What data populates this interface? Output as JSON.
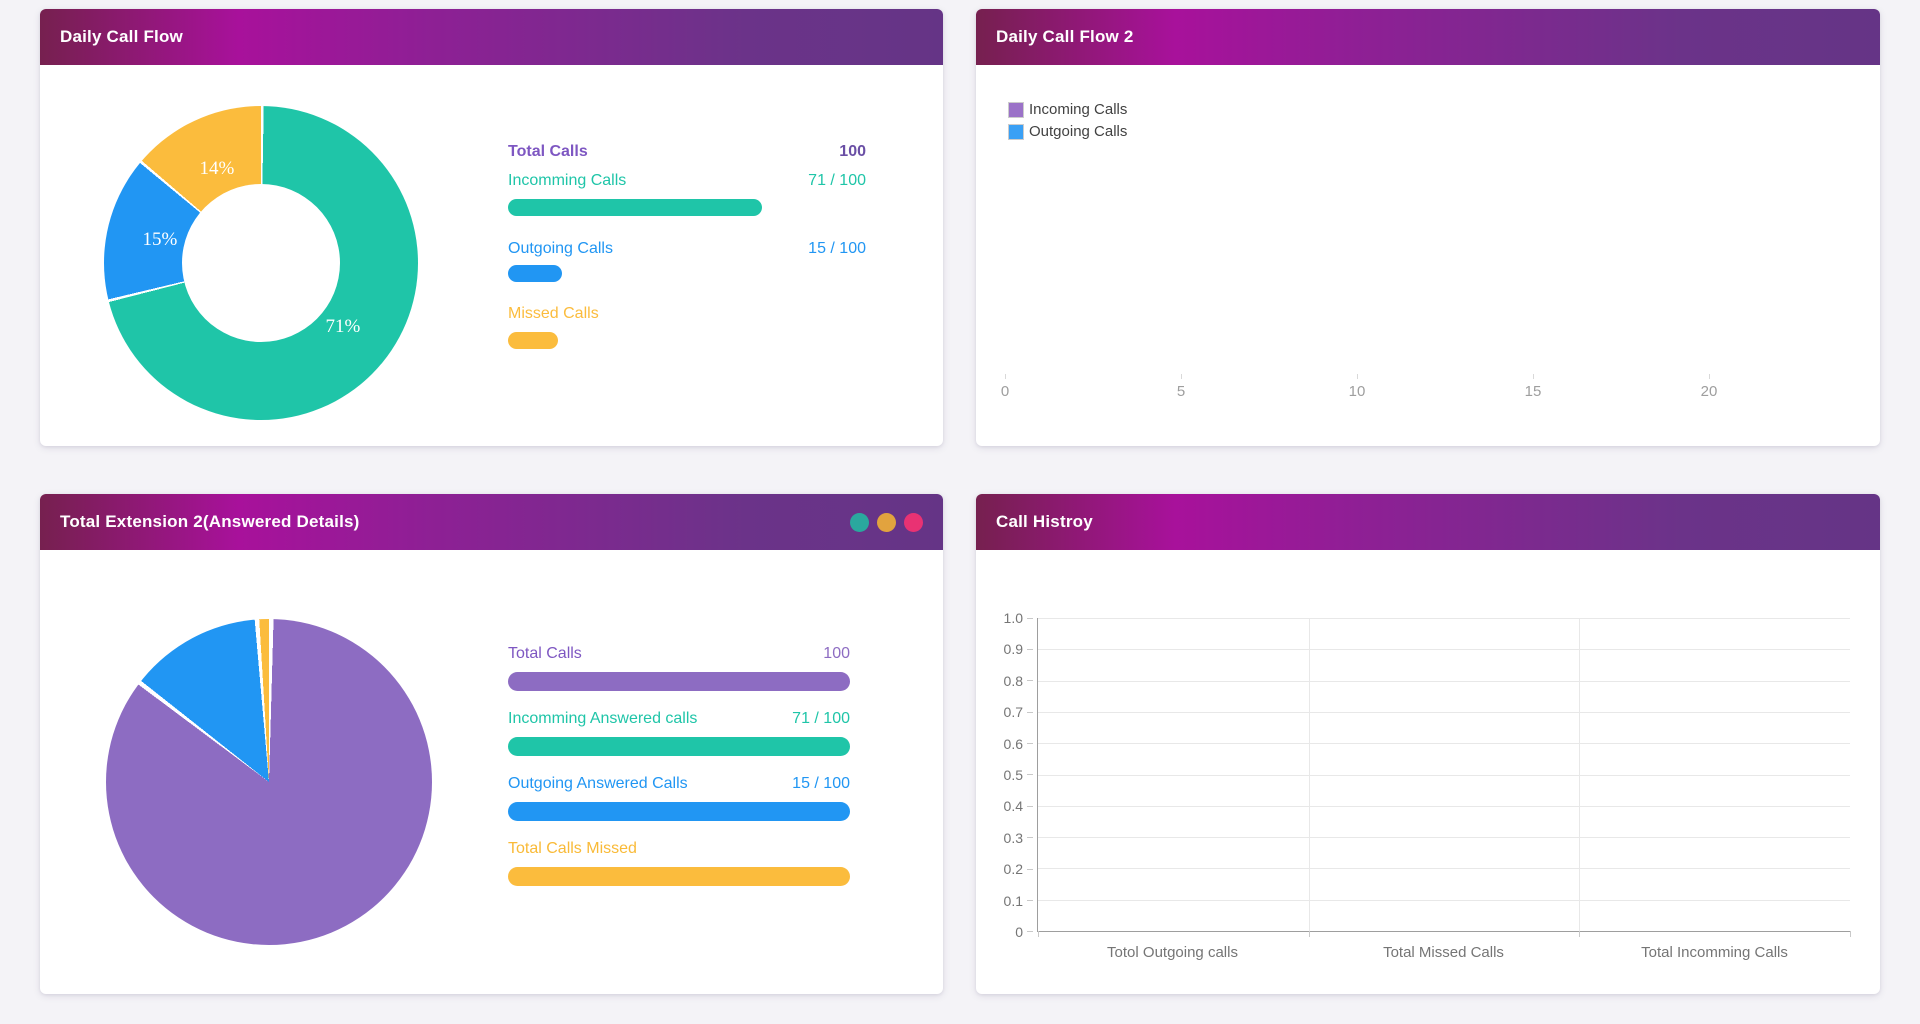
{
  "theme": {
    "page_background": "#f4f3f7",
    "header_gradient_from": "#76204f",
    "header_gradient_mid": "#a8119b",
    "header_gradient_to": "#653486",
    "teal": "#1fc5a8",
    "blue": "#2196f3",
    "yellow": "#fbbc3d",
    "purple": "#8d6cc2"
  },
  "cards": {
    "daily_call_flow": {
      "title": "Daily Call Flow",
      "donut": {
        "gap_deg": 1.0,
        "segments": [
          {
            "name": "Incomming Calls",
            "percent": 71,
            "label": "71%",
            "color": "#1fc5a8"
          },
          {
            "name": "Outgoing Calls",
            "percent": 15,
            "label": "15%",
            "color": "#2196f3"
          },
          {
            "name": "Missed Calls",
            "percent": 14,
            "label": "14%",
            "color": "#fbbc3d"
          }
        ]
      },
      "stats": {
        "total_label": "Total Calls",
        "total_value": "100",
        "total_label_color": "#7e57c2",
        "total_value_color": "#6a4fa5",
        "rows": [
          {
            "label": "Incomming Calls",
            "value": "71 / 100",
            "percent": 71,
            "color": "#1fc5a8"
          },
          {
            "label": "Outgoing Calls",
            "value": "15 / 100",
            "percent": 15,
            "color": "#2196f3"
          },
          {
            "label": "Missed Calls",
            "value": "",
            "percent": 14,
            "color": "#fbbc3d"
          }
        ]
      }
    },
    "daily_call_flow_2": {
      "title": "Daily Call Flow 2",
      "legend": [
        {
          "label": "Incoming Calls",
          "color": "#9b72c8"
        },
        {
          "label": "Outgoing Calls",
          "color": "#3aa0f5"
        }
      ],
      "x_ticks": [
        "0",
        "5",
        "10",
        "15",
        "20"
      ]
    },
    "total_extension": {
      "title": "Total Extension 2(Answered Details)",
      "header_dots": [
        "#2aa89e",
        "#e2a33e",
        "#e93273"
      ],
      "pie": {
        "gap_deg": 1.6,
        "segments": [
          {
            "name": "Total Calls",
            "percent": 85.2,
            "color": "#8d6cc2"
          },
          {
            "name": "Outgoing Answered Calls",
            "percent": 13.4,
            "color": "#2196f3"
          },
          {
            "name": "Total Calls Missed",
            "percent": 1.4,
            "color": "#fbbc3d"
          }
        ]
      },
      "stats": {
        "rows": [
          {
            "label": "Total Calls",
            "value": "100",
            "percent": 100,
            "color": "#8d6cc2",
            "label_color": "#7e57c2",
            "value_color": "#8d6cc2"
          },
          {
            "label": "Incomming Answered calls",
            "value": "71 / 100",
            "percent": 100,
            "color": "#1fc5a8",
            "label_color": "#1fc5a8",
            "value_color": "#1fc5a8"
          },
          {
            "label": "Outgoing Answered Calls",
            "value": "15 / 100",
            "percent": 100,
            "color": "#2196f3",
            "label_color": "#2196f3",
            "value_color": "#2196f3"
          },
          {
            "label": "Total Calls Missed",
            "value": "",
            "percent": 100,
            "color": "#fbbc3d",
            "label_color": "#f9ba37",
            "value_color": "#f9ba37"
          }
        ]
      }
    },
    "call_history": {
      "title": "Call Histroy",
      "y_ticks": [
        "1.0",
        "0.9",
        "0.8",
        "0.7",
        "0.6",
        "0.5",
        "0.4",
        "0.3",
        "0.2",
        "0.1",
        "0"
      ],
      "categories": [
        "Totol Outgoing calls",
        "Total Missed Calls",
        "Total Incomming Calls"
      ]
    }
  },
  "chart_data": [
    {
      "type": "pie",
      "subtype": "donut",
      "title": "Daily Call Flow",
      "labels": [
        "Incomming Calls",
        "Outgoing Calls",
        "Missed Calls"
      ],
      "values": [
        71,
        15,
        14
      ],
      "unit": "percent",
      "colors": [
        "#1fc5a8",
        "#2196f3",
        "#fbbc3d"
      ],
      "annotations": [
        "71%",
        "15%",
        "14%"
      ],
      "legend_position": "none",
      "totals": {
        "total_calls": 100,
        "incomming_calls": "71 / 100",
        "outgoing_calls": "15 / 100"
      }
    },
    {
      "type": "bar",
      "title": "Daily Call Flow 2",
      "orientation": "horizontal",
      "series": [
        {
          "name": "Incoming Calls",
          "color": "#9b72c8",
          "values": []
        },
        {
          "name": "Outgoing Calls",
          "color": "#3aa0f5",
          "values": []
        }
      ],
      "x_axis": {
        "min": 0,
        "max": 20,
        "ticks": [
          0,
          5,
          10,
          15,
          20
        ]
      },
      "legend_position": "top-left",
      "grid": false,
      "note": "plot area empty (no bars rendered)"
    },
    {
      "type": "pie",
      "title": "Total Extension 2(Answered Details)",
      "labels": [
        "Total Calls",
        "Outgoing Answered Calls",
        "Total Calls Missed"
      ],
      "values_percent": [
        85.2,
        13.4,
        1.4
      ],
      "colors": [
        "#8d6cc2",
        "#2196f3",
        "#fbbc3d"
      ],
      "legend_position": "none",
      "totals": {
        "total_calls": 100,
        "incomming_answered_calls": "71 / 100",
        "outgoing_answered_calls": "15 / 100"
      }
    },
    {
      "type": "bar",
      "title": "Call Histroy",
      "categories": [
        "Totol Outgoing calls",
        "Total Missed Calls",
        "Total Incomming Calls"
      ],
      "values": [],
      "y_axis": {
        "min": 0,
        "max": 1.0,
        "ticks": [
          1.0,
          0.9,
          0.8,
          0.7,
          0.6,
          0.5,
          0.4,
          0.3,
          0.2,
          0.1,
          0
        ]
      },
      "grid": true,
      "note": "plot area empty (no bars rendered)"
    }
  ]
}
